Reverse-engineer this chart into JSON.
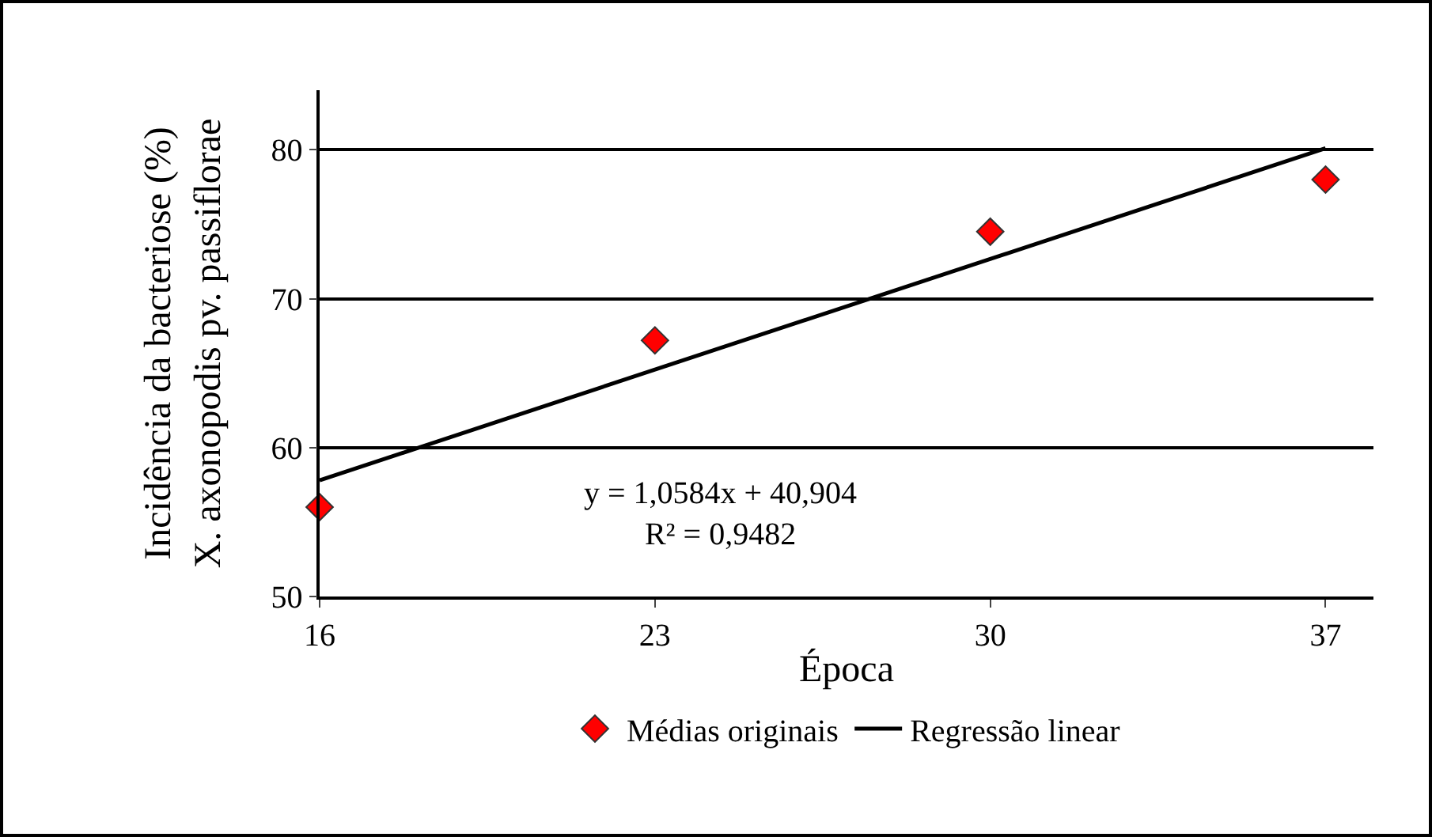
{
  "chart_data": {
    "type": "scatter",
    "xlabel": "Época",
    "ylabel": "Incidência da bacteriose (%)\nX. axonopodis pv. passiflorae",
    "xlim": [
      16,
      38
    ],
    "xticks": [
      16,
      23,
      30,
      37
    ],
    "ylim": [
      50,
      84
    ],
    "yticks": [
      50,
      60,
      70,
      80
    ],
    "grid": "y",
    "legend": "bottom",
    "annotations": [
      "y = 1,0584x + 40,904\nR² = 0,9482"
    ],
    "series": [
      {
        "name": "Médias originais",
        "marker": "diamond",
        "color": "#ff0000",
        "x": [
          16,
          23,
          30,
          37
        ],
        "values": [
          56,
          67.2,
          74.5,
          78
        ]
      },
      {
        "name": "Regressão linear",
        "type": "line",
        "color": "#000000",
        "line_style": "solid",
        "x": [
          16,
          37
        ],
        "values": [
          57.8,
          80.1
        ]
      }
    ]
  }
}
